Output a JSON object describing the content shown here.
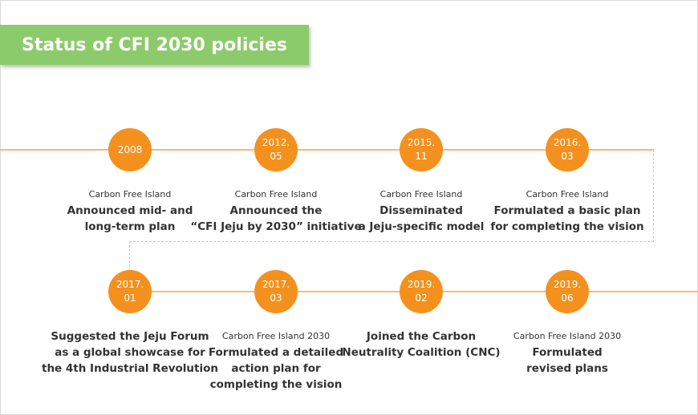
{
  "title": "Status of CFI 2030 policies",
  "milestones": [
    {
      "date": "2008",
      "subtitle": "Carbon Free Island",
      "text": "Announced mid- and\nlong-term plan"
    },
    {
      "date": "2012.\n05",
      "subtitle": "Carbon Free Island",
      "text": "Announced the\n“CFI Jeju by 2030” initiative"
    },
    {
      "date": "2015.\n11",
      "subtitle": "Carbon Free Island",
      "text": "Disseminated\na Jeju-specific model"
    },
    {
      "date": "2016.\n03",
      "subtitle": "Carbon Free Island",
      "text": "Formulated a basic plan\nfor completing the vision"
    },
    {
      "date": "2017.\n01",
      "subtitle": "",
      "text": "Suggested the Jeju Forum\nas a global showcase for\nthe 4th Industrial Revolution"
    },
    {
      "date": "2017.\n03",
      "subtitle": "Carbon Free Island 2030",
      "text": "Formulated a detailed\naction plan for\ncompleting the vision"
    },
    {
      "date": "2019.\n02",
      "subtitle": "",
      "text": "Joined the Carbon\nNeutrality Coalition (CNC)"
    },
    {
      "date": "2019.\n06",
      "subtitle": "Carbon Free Island 2030",
      "text": "Formulated\nrevised plans"
    }
  ],
  "colors": {
    "banner": "#8ccb6b",
    "node": "#f4911e",
    "line": "#f7b977"
  }
}
